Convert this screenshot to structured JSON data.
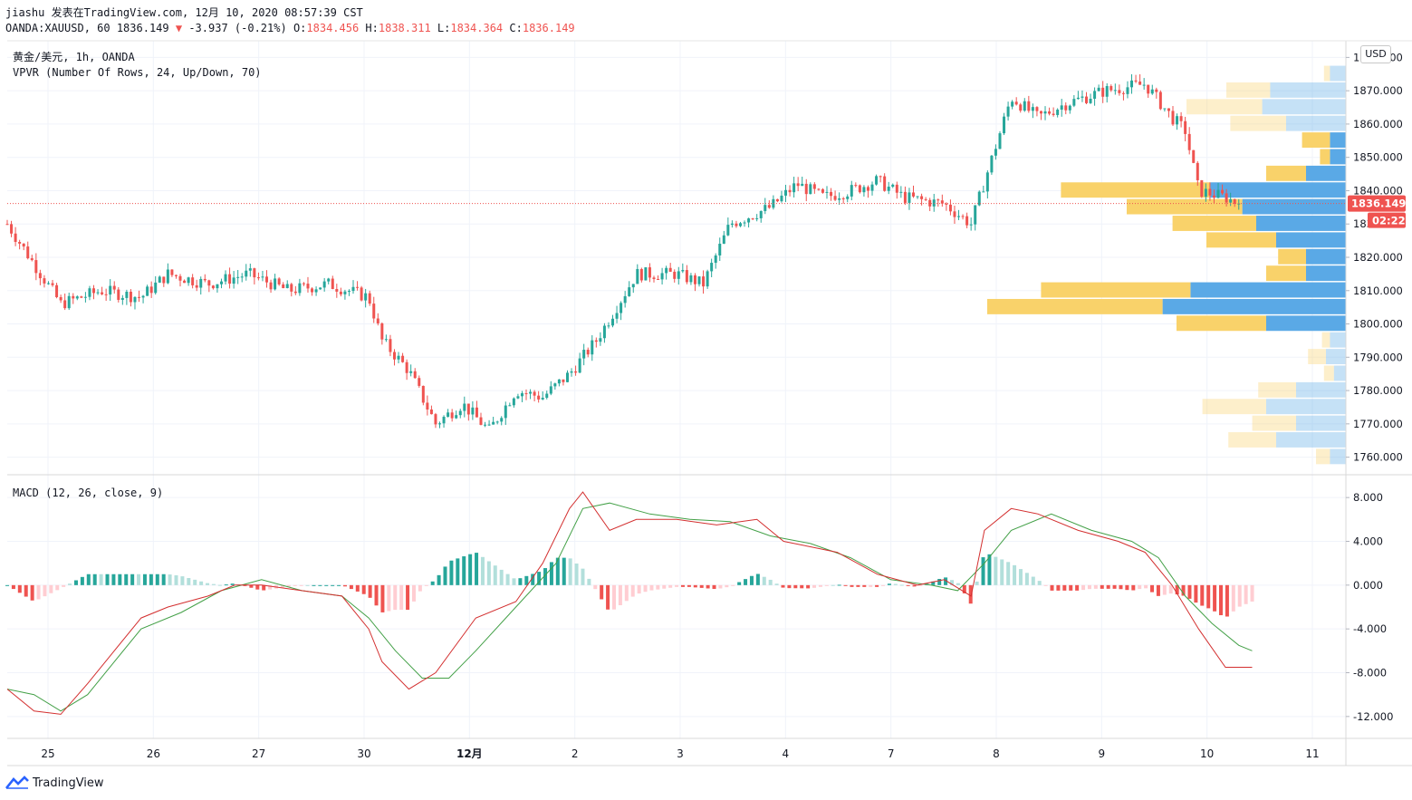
{
  "header": {
    "line1": "jiashu 发表在TradingView.com, 12月 10, 2020 08:57:39 CST",
    "symbol_full": "OANDA:XAUUSD, 60",
    "last": "1836.149",
    "change": "-3.937 (-0.21%)",
    "o_label": "O:",
    "o": "1834.456",
    "h_label": "H:",
    "h": "1838.311",
    "l_label": "L:",
    "l": "1834.364",
    "c_label": "C:",
    "c": "1836.149"
  },
  "indicators": {
    "symbol_line": "黄金/美元, 1h, OANDA",
    "vpvr": "VPVR (Number Of Rows, 24, Up/Down, 70)",
    "macd": "MACD (12, 26, close, 9)"
  },
  "currency_button": "USD",
  "brand": "TradingView",
  "colors": {
    "up": "#26a69a",
    "down": "#ef5350",
    "vp_up": "#5aa9e6",
    "vp_down": "#f9d26a",
    "macd": "#d32f2f",
    "signal": "#43a047"
  },
  "chart_data": [
    {
      "type": "candlestick",
      "title": "黄金/美元, 1h, OANDA",
      "ylim": [
        1755,
        1885
      ],
      "yticks": [
        "1760.000",
        "1770.000",
        "1780.000",
        "1790.000",
        "1800.000",
        "1810.000",
        "1820.000",
        "1830.000",
        "1840.000",
        "1850.000",
        "1860.000",
        "1870.000",
        "1880.000"
      ],
      "x_ticks": [
        "25",
        "26",
        "27",
        "30",
        "12月",
        "2",
        "3",
        "4",
        "7",
        "8",
        "9",
        "10",
        "11"
      ],
      "last_price": 1836.149,
      "last_price_label": "1836.149",
      "countdown": "02:22",
      "price_path": [
        [
          0,
          1830
        ],
        [
          0.02,
          1818
        ],
        [
          0.04,
          1806
        ],
        [
          0.07,
          1810
        ],
        [
          0.1,
          1808
        ],
        [
          0.12,
          1815
        ],
        [
          0.15,
          1812
        ],
        [
          0.18,
          1815
        ],
        [
          0.21,
          1810
        ],
        [
          0.24,
          1812
        ],
        [
          0.27,
          1808
        ],
        [
          0.28,
          1795
        ],
        [
          0.3,
          1786
        ],
        [
          0.32,
          1770
        ],
        [
          0.34,
          1776
        ],
        [
          0.36,
          1768
        ],
        [
          0.38,
          1780
        ],
        [
          0.4,
          1778
        ],
        [
          0.42,
          1785
        ],
        [
          0.44,
          1795
        ],
        [
          0.47,
          1815
        ],
        [
          0.5,
          1815
        ],
        [
          0.52,
          1812
        ],
        [
          0.54,
          1830
        ],
        [
          0.57,
          1835
        ],
        [
          0.59,
          1842
        ],
        [
          0.61,
          1838
        ],
        [
          0.63,
          1840
        ],
        [
          0.65,
          1843
        ],
        [
          0.67,
          1838
        ],
        [
          0.7,
          1836
        ],
        [
          0.72,
          1830
        ],
        [
          0.75,
          1868
        ],
        [
          0.77,
          1862
        ],
        [
          0.79,
          1866
        ],
        [
          0.82,
          1870
        ],
        [
          0.85,
          1872
        ],
        [
          0.87,
          1862
        ],
        [
          0.88,
          1858
        ],
        [
          0.89,
          1840
        ],
        [
          0.91,
          1838
        ],
        [
          0.92,
          1836
        ]
      ],
      "volume_profile": [
        {
          "price": 1875,
          "up": 8,
          "down": 3,
          "highlight": false
        },
        {
          "price": 1870,
          "up": 38,
          "down": 22,
          "highlight": false
        },
        {
          "price": 1865,
          "up": 42,
          "down": 38,
          "highlight": false
        },
        {
          "price": 1860,
          "up": 30,
          "down": 28,
          "highlight": false
        },
        {
          "price": 1855,
          "up": 8,
          "down": 14,
          "highlight": true
        },
        {
          "price": 1850,
          "up": 8,
          "down": 5,
          "highlight": true
        },
        {
          "price": 1845,
          "up": 20,
          "down": 20,
          "highlight": true
        },
        {
          "price": 1840,
          "up": 68,
          "down": 75,
          "highlight": true
        },
        {
          "price": 1835,
          "up": 52,
          "down": 58,
          "highlight": true
        },
        {
          "price": 1830,
          "up": 45,
          "down": 42,
          "highlight": true
        },
        {
          "price": 1825,
          "up": 35,
          "down": 35,
          "highlight": true
        },
        {
          "price": 1820,
          "up": 20,
          "down": 14,
          "highlight": true
        },
        {
          "price": 1815,
          "up": 20,
          "down": 20,
          "highlight": true
        },
        {
          "price": 1810,
          "up": 78,
          "down": 75,
          "highlight": true
        },
        {
          "price": 1805,
          "up": 92,
          "down": 88,
          "highlight": true
        },
        {
          "price": 1800,
          "up": 40,
          "down": 45,
          "highlight": true
        },
        {
          "price": 1795,
          "up": 8,
          "down": 4,
          "highlight": false
        },
        {
          "price": 1790,
          "up": 10,
          "down": 9,
          "highlight": false
        },
        {
          "price": 1785,
          "up": 6,
          "down": 5,
          "highlight": false
        },
        {
          "price": 1780,
          "up": 25,
          "down": 19,
          "highlight": false
        },
        {
          "price": 1775,
          "up": 40,
          "down": 32,
          "highlight": false
        },
        {
          "price": 1770,
          "up": 25,
          "down": 22,
          "highlight": false
        },
        {
          "price": 1765,
          "up": 35,
          "down": 24,
          "highlight": false
        },
        {
          "price": 1760,
          "up": 8,
          "down": 7,
          "highlight": false
        }
      ]
    },
    {
      "type": "line",
      "title": "MACD (12, 26, close, 9)",
      "ylim": [
        -14,
        10
      ],
      "yticks": [
        "8.000",
        "4.000",
        "0.000",
        "-4.000",
        "-8.000",
        "-12.000"
      ],
      "series": [
        {
          "name": "MACD",
          "points": [
            [
              0,
              -9.5
            ],
            [
              0.02,
              -11.5
            ],
            [
              0.04,
              -11.8
            ],
            [
              0.06,
              -9
            ],
            [
              0.08,
              -6
            ],
            [
              0.1,
              -3
            ],
            [
              0.12,
              -2
            ],
            [
              0.15,
              -1
            ],
            [
              0.17,
              0
            ],
            [
              0.19,
              0
            ],
            [
              0.22,
              -0.5
            ],
            [
              0.25,
              -1
            ],
            [
              0.27,
              -4
            ],
            [
              0.28,
              -7
            ],
            [
              0.3,
              -9.5
            ],
            [
              0.32,
              -8
            ],
            [
              0.35,
              -3
            ],
            [
              0.38,
              -1.5
            ],
            [
              0.4,
              2
            ],
            [
              0.42,
              7
            ],
            [
              0.43,
              8.5
            ],
            [
              0.45,
              5
            ],
            [
              0.47,
              6
            ],
            [
              0.5,
              6
            ],
            [
              0.53,
              5.5
            ],
            [
              0.56,
              6
            ],
            [
              0.58,
              4
            ],
            [
              0.6,
              3.5
            ],
            [
              0.62,
              3
            ],
            [
              0.65,
              1
            ],
            [
              0.68,
              0
            ],
            [
              0.7,
              0.5
            ],
            [
              0.72,
              -1
            ],
            [
              0.73,
              5
            ],
            [
              0.75,
              7
            ],
            [
              0.77,
              6.5
            ],
            [
              0.8,
              5
            ],
            [
              0.83,
              4
            ],
            [
              0.85,
              3
            ],
            [
              0.87,
              0
            ],
            [
              0.89,
              -4
            ],
            [
              0.91,
              -7.5
            ],
            [
              0.93,
              -7.5
            ]
          ]
        },
        {
          "name": "Signal",
          "points": [
            [
              0,
              -9.5
            ],
            [
              0.02,
              -10
            ],
            [
              0.04,
              -11.5
            ],
            [
              0.06,
              -10
            ],
            [
              0.08,
              -7
            ],
            [
              0.1,
              -4
            ],
            [
              0.13,
              -2.5
            ],
            [
              0.16,
              -0.5
            ],
            [
              0.19,
              0.5
            ],
            [
              0.22,
              -0.5
            ],
            [
              0.25,
              -1
            ],
            [
              0.27,
              -3
            ],
            [
              0.29,
              -6
            ],
            [
              0.31,
              -8.5
            ],
            [
              0.33,
              -8.5
            ],
            [
              0.35,
              -6
            ],
            [
              0.38,
              -2
            ],
            [
              0.41,
              2
            ],
            [
              0.43,
              7
            ],
            [
              0.45,
              7.5
            ],
            [
              0.48,
              6.5
            ],
            [
              0.51,
              6
            ],
            [
              0.54,
              5.8
            ],
            [
              0.57,
              4.5
            ],
            [
              0.6,
              3.8
            ],
            [
              0.63,
              2.5
            ],
            [
              0.66,
              0.5
            ],
            [
              0.69,
              0
            ],
            [
              0.71,
              -0.5
            ],
            [
              0.73,
              2
            ],
            [
              0.75,
              5
            ],
            [
              0.78,
              6.5
            ],
            [
              0.81,
              5
            ],
            [
              0.84,
              4
            ],
            [
              0.86,
              2.5
            ],
            [
              0.88,
              -1
            ],
            [
              0.9,
              -3.5
            ],
            [
              0.92,
              -5.5
            ],
            [
              0.93,
              -6
            ]
          ]
        }
      ]
    }
  ]
}
